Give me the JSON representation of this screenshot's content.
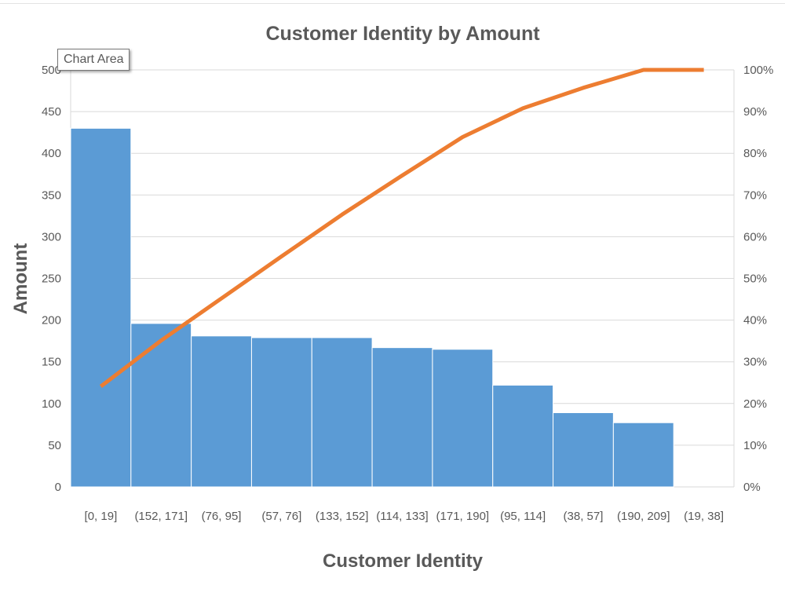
{
  "tooltip": "Chart Area",
  "chart_data": {
    "type": "bar",
    "subtype": "pareto",
    "title": "Customer Identity by Amount",
    "xlabel": "Customer Identity",
    "ylabel": "Amount",
    "categories": [
      "[0, 19]",
      "(152, 171]",
      "(76, 95]",
      "(57, 76]",
      "(133, 152]",
      "(114, 133]",
      "(171, 190]",
      "(95, 114]",
      "(38, 57]",
      "(190, 209]",
      "(19, 38]"
    ],
    "series": [
      {
        "type": "bar",
        "values": [
          430,
          196,
          181,
          179,
          179,
          167,
          165,
          122,
          89,
          77,
          0
        ],
        "color": "#5b9bd5"
      },
      {
        "type": "line",
        "axis": "secondary",
        "values_percent": [
          24.1,
          35.1,
          45.2,
          55.3,
          65.3,
          74.7,
          83.9,
          90.8,
          95.7,
          100,
          100
        ],
        "color": "#ed7d31"
      }
    ],
    "ylim": [
      0,
      500
    ],
    "yticks": [
      "0",
      "50",
      "100",
      "150",
      "200",
      "250",
      "300",
      "350",
      "400",
      "450",
      "500"
    ],
    "y2lim": [
      0,
      100
    ],
    "y2ticks": [
      "0%",
      "10%",
      "20%",
      "30%",
      "40%",
      "50%",
      "60%",
      "70%",
      "80%",
      "90%",
      "100%"
    ],
    "grid": true,
    "legend": "none"
  }
}
